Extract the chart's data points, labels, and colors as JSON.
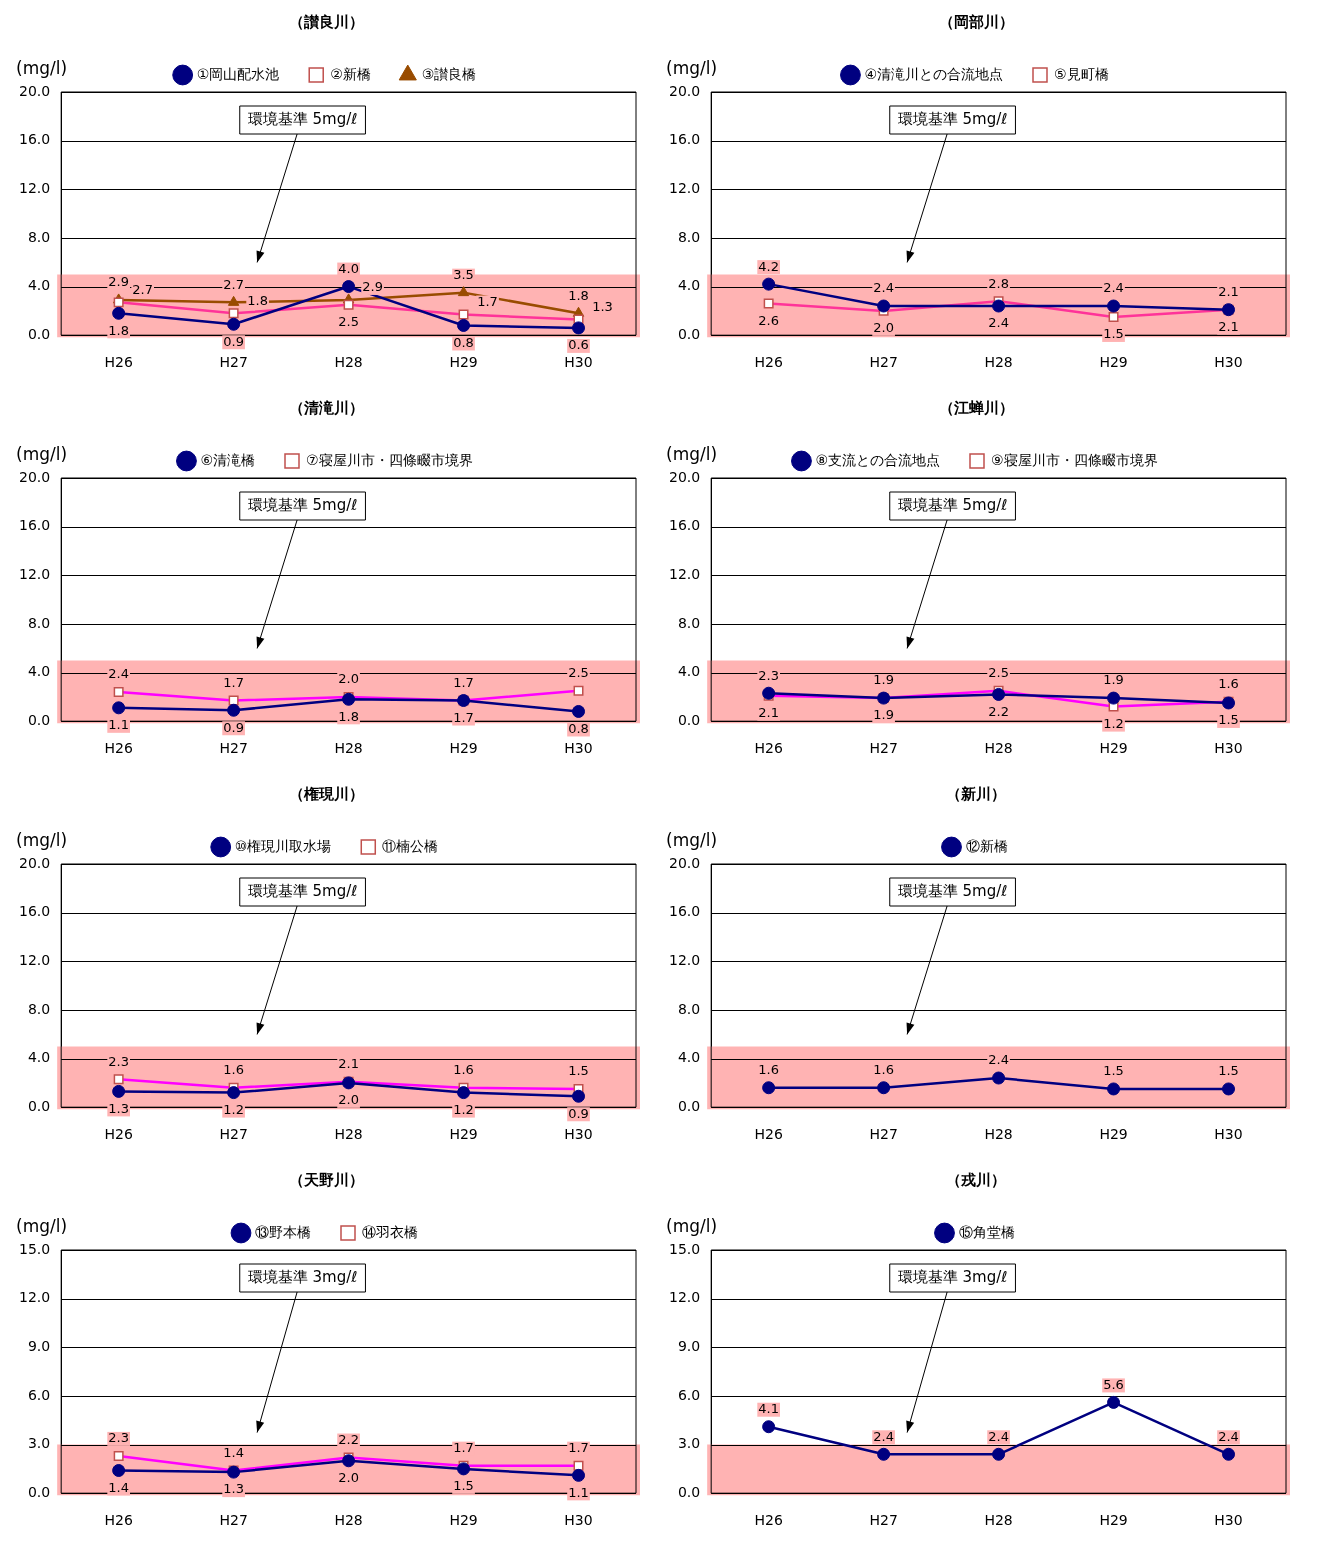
{
  "chart_data": [
    {
      "type": "line",
      "title": "（讃良川）",
      "ylabel": "(mg/l)",
      "categories": [
        "H26",
        "H27",
        "H28",
        "H29",
        "H30"
      ],
      "ylim": [
        0,
        20
      ],
      "yticks": [
        {
          "value": 0,
          "label": "0.0"
        },
        {
          "value": 4,
          "label": "4.0"
        },
        {
          "value": 8,
          "label": "8.0"
        },
        {
          "value": 12,
          "label": "12.0"
        },
        {
          "value": 16,
          "label": "16.0"
        },
        {
          "value": 20,
          "label": "20.0"
        }
      ],
      "grid": "y",
      "legend": "top",
      "bands": [
        {
          "axis": "y",
          "from": 0,
          "to": 5,
          "color": "#ffb3b3"
        }
      ],
      "annotations": [
        "環境基準 5mg/ℓ"
      ],
      "series": [
        {
          "name": "①岡山配水池",
          "color": "#000080",
          "marker": "circle",
          "values": [
            1.8,
            0.9,
            4.0,
            0.8,
            0.6
          ],
          "value_labels": [
            "1.8",
            "0.9",
            "4.0",
            "0.8",
            "0.6"
          ]
        },
        {
          "name": "②新橋",
          "color": "#ff3399",
          "marker": "square",
          "values": [
            2.7,
            1.8,
            2.5,
            1.7,
            1.3
          ],
          "value_labels": [
            "2.7",
            "1.8",
            "2.5",
            "1.7",
            "1.3"
          ]
        },
        {
          "name": "③讃良橋",
          "color": "#994c00",
          "marker": "triangle",
          "values": [
            2.9,
            2.7,
            2.9,
            3.5,
            1.8
          ],
          "value_labels": [
            "2.9",
            "2.7",
            "2.9",
            "3.5",
            "1.8"
          ]
        }
      ]
    },
    {
      "type": "line",
      "title": "（岡部川）",
      "ylabel": "(mg/l)",
      "categories": [
        "H26",
        "H27",
        "H28",
        "H29",
        "H30"
      ],
      "ylim": [
        0,
        20
      ],
      "yticks": [
        {
          "value": 0,
          "label": "0.0"
        },
        {
          "value": 4,
          "label": "4.0"
        },
        {
          "value": 8,
          "label": "8.0"
        },
        {
          "value": 12,
          "label": "12.0"
        },
        {
          "value": 16,
          "label": "16.0"
        },
        {
          "value": 20,
          "label": "20.0"
        }
      ],
      "grid": "y",
      "legend": "top",
      "bands": [
        {
          "axis": "y",
          "from": 0,
          "to": 5,
          "color": "#ffb3b3"
        }
      ],
      "annotations": [
        "環境基準 5mg/ℓ"
      ],
      "series": [
        {
          "name": "④清滝川との合流地点",
          "color": "#000080",
          "marker": "circle",
          "values": [
            4.2,
            2.4,
            2.4,
            2.4,
            2.1
          ],
          "value_labels": [
            "4.2",
            "2.4",
            "2.4",
            "2.4",
            "2.1"
          ]
        },
        {
          "name": "⑤見町橋",
          "color": "#ff3399",
          "marker": "square",
          "values": [
            2.6,
            2.0,
            2.8,
            1.5,
            2.1
          ],
          "value_labels": [
            "2.6",
            "2.0",
            "2.8",
            "1.5",
            "2.1"
          ]
        }
      ]
    },
    {
      "type": "line",
      "title": "（清滝川）",
      "ylabel": "(mg/l)",
      "categories": [
        "H26",
        "H27",
        "H28",
        "H29",
        "H30"
      ],
      "ylim": [
        0,
        20
      ],
      "yticks": [
        {
          "value": 0,
          "label": "0.0"
        },
        {
          "value": 4,
          "label": "4.0"
        },
        {
          "value": 8,
          "label": "8.0"
        },
        {
          "value": 12,
          "label": "12.0"
        },
        {
          "value": 16,
          "label": "16.0"
        },
        {
          "value": 20,
          "label": "20.0"
        }
      ],
      "grid": "y",
      "legend": "top",
      "bands": [
        {
          "axis": "y",
          "from": 0,
          "to": 5,
          "color": "#ffb3b3"
        }
      ],
      "annotations": [
        "環境基準 5mg/ℓ"
      ],
      "series": [
        {
          "name": "⑥清滝橋",
          "color": "#000080",
          "marker": "circle",
          "values": [
            1.1,
            0.9,
            1.8,
            1.7,
            0.8
          ],
          "value_labels": [
            "1.1",
            "0.9",
            "1.8",
            "1.7",
            "0.8"
          ]
        },
        {
          "name": "⑦寝屋川市・四條畷市境界",
          "color": "#ff00ff",
          "marker": "square",
          "values": [
            2.4,
            1.7,
            2.0,
            1.7,
            2.5
          ],
          "value_labels": [
            "2.4",
            "1.7",
            "2.0",
            "1.7",
            "2.5"
          ]
        }
      ]
    },
    {
      "type": "line",
      "title": "（江蝉川）",
      "ylabel": "(mg/l)",
      "categories": [
        "H26",
        "H27",
        "H28",
        "H29",
        "H30"
      ],
      "ylim": [
        0,
        20
      ],
      "yticks": [
        {
          "value": 0,
          "label": "0.0"
        },
        {
          "value": 4,
          "label": "4.0"
        },
        {
          "value": 8,
          "label": "8.0"
        },
        {
          "value": 12,
          "label": "12.0"
        },
        {
          "value": 16,
          "label": "16.0"
        },
        {
          "value": 20,
          "label": "20.0"
        }
      ],
      "grid": "y",
      "legend": "top",
      "bands": [
        {
          "axis": "y",
          "from": 0,
          "to": 5,
          "color": "#ffb3b3"
        }
      ],
      "annotations": [
        "環境基準 5mg/ℓ"
      ],
      "series": [
        {
          "name": "⑧支流との合流地点",
          "color": "#000080",
          "marker": "circle",
          "values": [
            2.3,
            1.9,
            2.2,
            1.9,
            1.5
          ],
          "value_labels": [
            "2.3",
            "1.9",
            "2.2",
            "1.9",
            "1.5"
          ]
        },
        {
          "name": "⑨寝屋川市・四條畷市境界",
          "color": "#ff00ff",
          "marker": "square",
          "values": [
            2.1,
            1.9,
            2.5,
            1.2,
            1.6
          ],
          "value_labels": [
            "2.1",
            "1.9",
            "2.5",
            "1.2",
            "1.6"
          ]
        }
      ]
    },
    {
      "type": "line",
      "title": "（権現川）",
      "ylabel": "(mg/l)",
      "categories": [
        "H26",
        "H27",
        "H28",
        "H29",
        "H30"
      ],
      "ylim": [
        0,
        20
      ],
      "yticks": [
        {
          "value": 0,
          "label": "0.0"
        },
        {
          "value": 4,
          "label": "4.0"
        },
        {
          "value": 8,
          "label": "8.0"
        },
        {
          "value": 12,
          "label": "12.0"
        },
        {
          "value": 16,
          "label": "16.0"
        },
        {
          "value": 20,
          "label": "20.0"
        }
      ],
      "grid": "y",
      "legend": "top",
      "bands": [
        {
          "axis": "y",
          "from": 0,
          "to": 5,
          "color": "#ffb3b3"
        }
      ],
      "annotations": [
        "環境基準 5mg/ℓ"
      ],
      "series": [
        {
          "name": "⑩権現川取水場",
          "color": "#000080",
          "marker": "circle",
          "values": [
            1.3,
            1.2,
            2.0,
            1.2,
            0.9
          ],
          "value_labels": [
            "1.3",
            "1.2",
            "2.0",
            "1.2",
            "0.9"
          ]
        },
        {
          "name": "⑪楠公橋",
          "color": "#ff00ff",
          "marker": "square",
          "values": [
            2.3,
            1.6,
            2.1,
            1.6,
            1.5
          ],
          "value_labels": [
            "2.3",
            "1.6",
            "2.1",
            "1.6",
            "1.5"
          ]
        }
      ]
    },
    {
      "type": "line",
      "title": "（新川）",
      "ylabel": "(mg/l)",
      "categories": [
        "H26",
        "H27",
        "H28",
        "H29",
        "H30"
      ],
      "ylim": [
        0,
        20
      ],
      "yticks": [
        {
          "value": 0,
          "label": "0.0"
        },
        {
          "value": 4,
          "label": "4.0"
        },
        {
          "value": 8,
          "label": "8.0"
        },
        {
          "value": 12,
          "label": "12.0"
        },
        {
          "value": 16,
          "label": "16.0"
        },
        {
          "value": 20,
          "label": "20.0"
        }
      ],
      "grid": "y",
      "legend": "top",
      "bands": [
        {
          "axis": "y",
          "from": 0,
          "to": 5,
          "color": "#ffb3b3"
        }
      ],
      "annotations": [
        "環境基準 5mg/ℓ"
      ],
      "series": [
        {
          "name": "⑫新橋",
          "color": "#000080",
          "marker": "circle",
          "values": [
            1.6,
            1.6,
            2.4,
            1.5,
            1.5
          ],
          "value_labels": [
            "1.6",
            "1.6",
            "2.4",
            "1.5",
            "1.5"
          ]
        }
      ]
    },
    {
      "type": "line",
      "title": "（天野川）",
      "ylabel": "(mg/l)",
      "categories": [
        "H26",
        "H27",
        "H28",
        "H29",
        "H30"
      ],
      "ylim": [
        0,
        15
      ],
      "yticks": [
        {
          "value": 0,
          "label": "0.0"
        },
        {
          "value": 3,
          "label": "3.0"
        },
        {
          "value": 6,
          "label": "6.0"
        },
        {
          "value": 9,
          "label": "9.0"
        },
        {
          "value": 12,
          "label": "12.0"
        },
        {
          "value": 15,
          "label": "15.0"
        }
      ],
      "grid": "y",
      "legend": "top",
      "bands": [
        {
          "axis": "y",
          "from": 0,
          "to": 3,
          "color": "#ffb3b3"
        }
      ],
      "annotations": [
        "環境基準 3mg/ℓ"
      ],
      "series": [
        {
          "name": "⑬野本橋",
          "color": "#000080",
          "marker": "circle",
          "values": [
            1.4,
            1.3,
            2.0,
            1.5,
            1.1
          ],
          "value_labels": [
            "1.4",
            "1.3",
            "2.0",
            "1.5",
            "1.1"
          ]
        },
        {
          "name": "⑭羽衣橋",
          "color": "#ff00ff",
          "marker": "square",
          "values": [
            2.3,
            1.4,
            2.2,
            1.7,
            1.7
          ],
          "value_labels": [
            "2.3",
            "1.4",
            "2.2",
            "1.7",
            "1.7"
          ]
        }
      ]
    },
    {
      "type": "line",
      "title": "（戎川）",
      "ylabel": "(mg/l)",
      "categories": [
        "H26",
        "H27",
        "H28",
        "H29",
        "H30"
      ],
      "ylim": [
        0,
        15
      ],
      "yticks": [
        {
          "value": 0,
          "label": "0.0"
        },
        {
          "value": 3,
          "label": "3.0"
        },
        {
          "value": 6,
          "label": "6.0"
        },
        {
          "value": 9,
          "label": "9.0"
        },
        {
          "value": 12,
          "label": "12.0"
        },
        {
          "value": 15,
          "label": "15.0"
        }
      ],
      "grid": "y",
      "legend": "top",
      "bands": [
        {
          "axis": "y",
          "from": 0,
          "to": 3,
          "color": "#ffb3b3"
        }
      ],
      "annotations": [
        "環境基準 3mg/ℓ"
      ],
      "series": [
        {
          "name": "⑮角堂橋",
          "color": "#000080",
          "marker": "circle",
          "values": [
            4.1,
            2.4,
            2.4,
            5.6,
            2.4
          ],
          "value_labels": [
            "4.1",
            "2.4",
            "2.4",
            "5.6",
            "2.4"
          ]
        }
      ]
    }
  ]
}
